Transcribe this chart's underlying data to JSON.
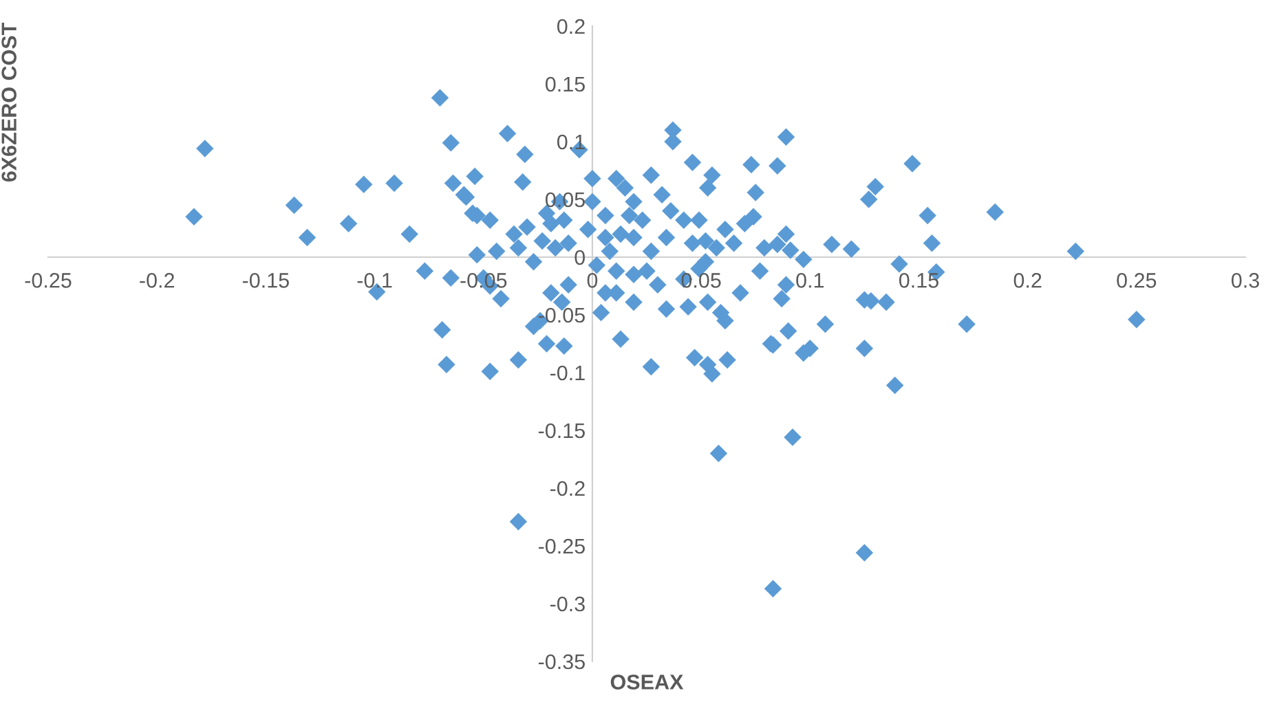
{
  "chart_data": {
    "type": "scatter",
    "xlabel": "OSEAX",
    "ylabel": "6X6ZERO COST",
    "marker": "diamond",
    "grid": false,
    "xlim": [
      -0.25,
      0.3
    ],
    "ylim": [
      -0.35,
      0.2
    ],
    "xticks": [
      -0.25,
      -0.2,
      -0.15,
      -0.1,
      -0.05,
      0,
      0.05,
      0.1,
      0.15,
      0.2,
      0.25,
      0.3
    ],
    "yticks": [
      -0.35,
      -0.3,
      -0.25,
      -0.2,
      -0.15,
      -0.1,
      -0.05,
      0,
      0.05,
      0.1,
      0.15,
      0.2
    ],
    "series": [
      {
        "color": "#5b9bd5",
        "x": [
          -0.178,
          -0.183,
          -0.137,
          -0.131,
          -0.105,
          -0.112,
          -0.091,
          -0.084,
          -0.077,
          -0.099,
          -0.07,
          -0.065,
          -0.064,
          -0.058,
          -0.054,
          -0.065,
          -0.069,
          -0.067,
          -0.047,
          -0.053,
          -0.047,
          -0.053,
          -0.05,
          -0.047,
          -0.039,
          -0.031,
          -0.006,
          -0.059,
          -0.032,
          -0.055,
          -0.044,
          -0.036,
          -0.03,
          -0.034,
          -0.027,
          -0.023,
          -0.019,
          -0.013,
          -0.015,
          -0.021,
          -0.011,
          -0.017,
          -0.042,
          -0.019,
          -0.011,
          -0.014,
          -0.027,
          -0.024,
          -0.021,
          -0.013,
          -0.034,
          0.004,
          0.006,
          0.002,
          0.006,
          0.0,
          0.0,
          0.006,
          -0.002,
          0.037,
          0.037,
          0.046,
          0.055,
          0.053,
          0.073,
          0.075,
          0.011,
          0.015,
          0.027,
          0.019,
          0.032,
          0.017,
          0.023,
          0.036,
          0.042,
          0.049,
          0.061,
          0.07,
          0.074,
          0.013,
          0.019,
          0.034,
          0.046,
          0.052,
          0.057,
          0.065,
          0.079,
          0.008,
          0.027,
          0.052,
          0.049,
          0.011,
          0.019,
          0.025,
          0.03,
          0.042,
          0.077,
          0.068,
          0.011,
          0.019,
          0.034,
          0.044,
          0.053,
          0.059,
          0.061,
          0.013,
          0.082,
          0.027,
          0.047,
          0.053,
          0.055,
          0.062,
          0.089,
          0.085,
          0.147,
          0.13,
          0.127,
          0.185,
          0.154,
          0.156,
          0.11,
          0.119,
          0.222,
          0.089,
          0.085,
          0.091,
          0.097,
          0.141,
          0.158,
          0.089,
          0.087,
          0.125,
          0.128,
          0.135,
          0.25,
          0.172,
          0.107,
          0.09,
          0.083,
          0.097,
          0.1,
          0.125,
          0.139,
          0.058,
          0.092,
          -0.034,
          0.125,
          0.083
        ],
        "values": [
          0.094,
          0.035,
          0.045,
          0.017,
          0.063,
          0.029,
          0.064,
          0.02,
          -0.012,
          -0.03,
          0.138,
          0.099,
          0.064,
          0.052,
          0.07,
          -0.018,
          -0.063,
          -0.093,
          -0.099,
          0.036,
          0.032,
          0.002,
          -0.018,
          -0.025,
          0.107,
          0.089,
          0.093,
          0.054,
          0.065,
          0.038,
          0.005,
          0.02,
          0.026,
          0.008,
          -0.004,
          0.014,
          0.029,
          0.032,
          0.048,
          0.038,
          0.012,
          0.008,
          -0.036,
          -0.031,
          -0.024,
          -0.039,
          -0.06,
          -0.055,
          -0.075,
          -0.077,
          -0.089,
          -0.048,
          -0.031,
          -0.007,
          0.017,
          0.048,
          0.068,
          0.036,
          0.024,
          0.11,
          0.1,
          0.082,
          0.071,
          0.06,
          0.08,
          0.056,
          0.068,
          0.06,
          0.071,
          0.048,
          0.054,
          0.036,
          0.032,
          0.04,
          0.032,
          0.032,
          0.024,
          0.029,
          0.035,
          0.02,
          0.017,
          0.017,
          0.012,
          0.014,
          0.008,
          0.012,
          0.008,
          0.005,
          0.005,
          -0.004,
          -0.01,
          -0.012,
          -0.015,
          -0.012,
          -0.024,
          -0.019,
          -0.012,
          -0.031,
          -0.031,
          -0.039,
          -0.045,
          -0.043,
          -0.039,
          -0.048,
          -0.055,
          -0.071,
          -0.075,
          -0.095,
          -0.087,
          -0.093,
          -0.101,
          -0.089,
          0.104,
          0.079,
          0.081,
          0.061,
          0.05,
          0.039,
          0.036,
          0.012,
          0.011,
          0.007,
          0.005,
          0.02,
          0.011,
          0.006,
          -0.002,
          -0.006,
          -0.013,
          -0.024,
          -0.036,
          -0.037,
          -0.038,
          -0.039,
          -0.054,
          -0.058,
          -0.058,
          -0.064,
          -0.076,
          -0.083,
          -0.079,
          -0.079,
          -0.111,
          -0.17,
          -0.156,
          -0.229,
          -0.256,
          -0.287
        ]
      }
    ]
  }
}
